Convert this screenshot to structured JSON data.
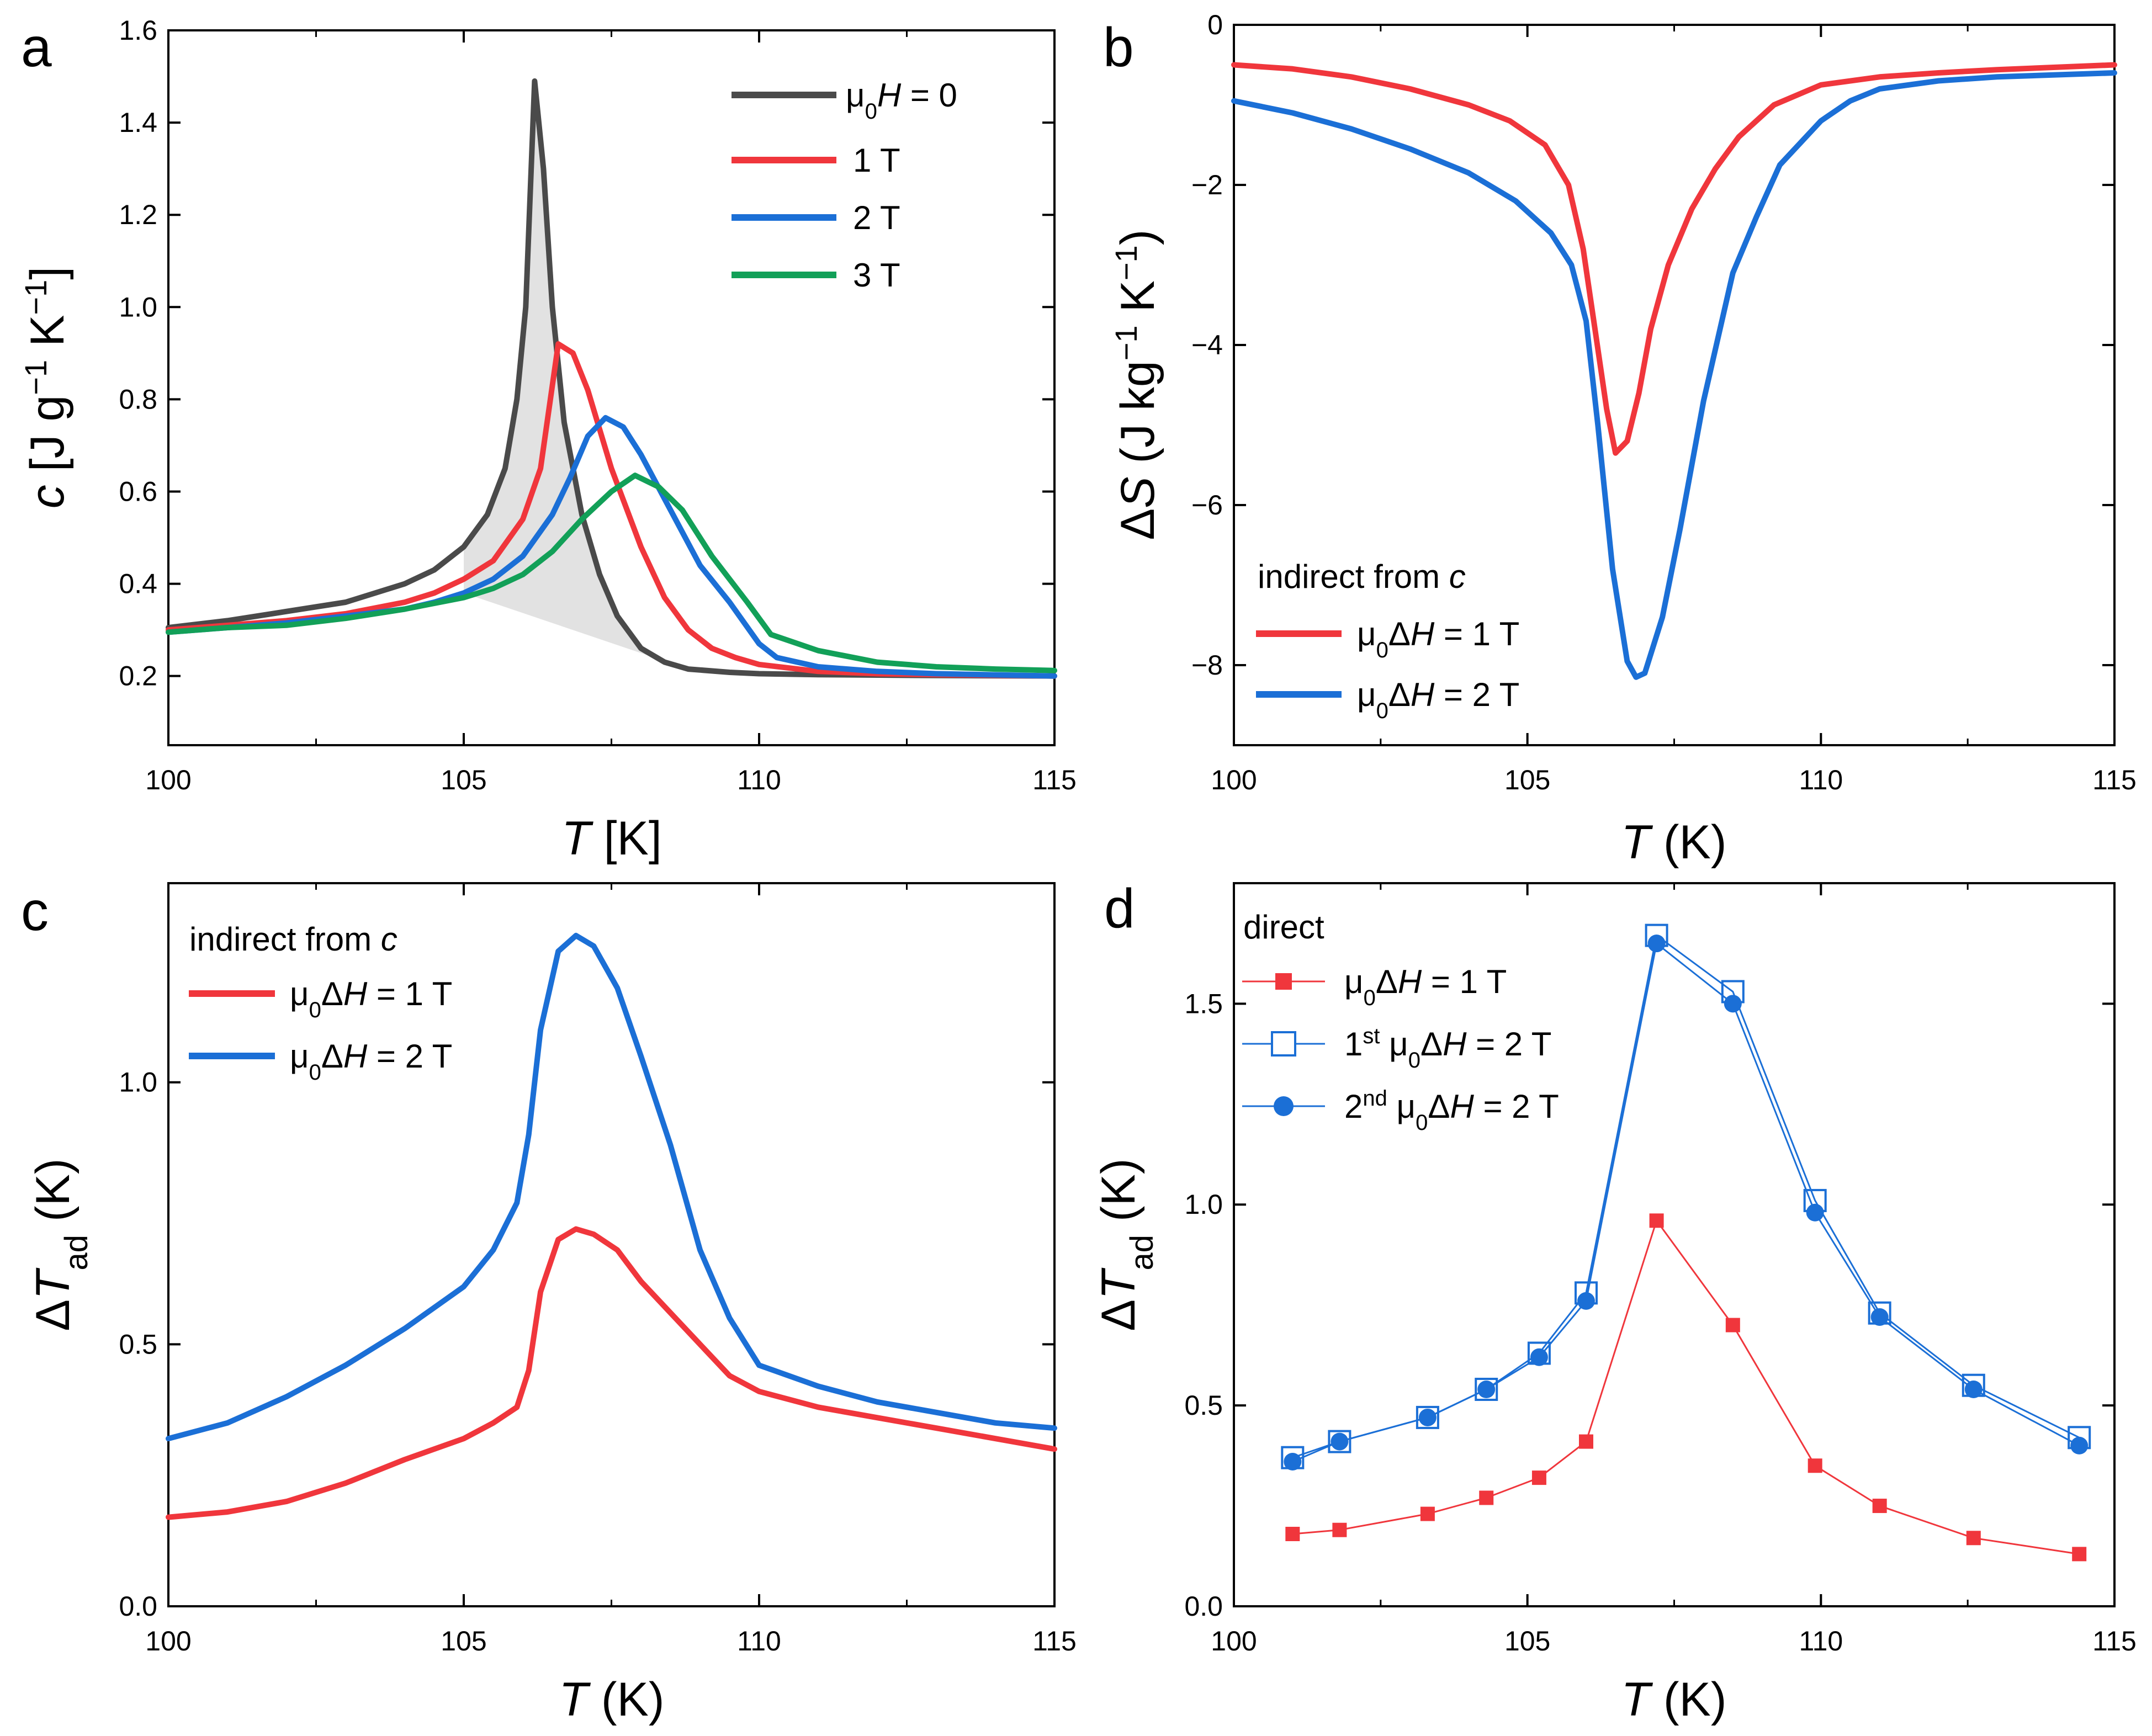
{
  "chart_data": [
    {
      "panel": "a",
      "type": "line",
      "xlabel": "T [K]",
      "ylabel": "c [J g⁻¹ K⁻¹]",
      "xlim": [
        100,
        115
      ],
      "ylim": [
        0.05,
        1.6
      ],
      "xticks": [
        "100",
        "105",
        "110",
        "115"
      ],
      "yticks": [
        "0.2",
        "0.4",
        "0.6",
        "0.8",
        "1.0",
        "1.2",
        "1.4",
        "1.6"
      ],
      "shaded_region": "between zero-field curve and baseline",
      "legend_position": "top-right",
      "series": [
        {
          "name": "μ0H = 0",
          "color": "#4a4a4a",
          "x": [
            100,
            101,
            102,
            103,
            104,
            104.5,
            105,
            105.4,
            105.7,
            105.9,
            106.05,
            106.2,
            106.35,
            106.5,
            106.7,
            107,
            107.3,
            107.6,
            108,
            108.4,
            108.8,
            109.5,
            110,
            111,
            112,
            113,
            115
          ],
          "y": [
            0.305,
            0.32,
            0.34,
            0.36,
            0.4,
            0.43,
            0.48,
            0.55,
            0.65,
            0.8,
            1.0,
            1.49,
            1.3,
            1.0,
            0.75,
            0.55,
            0.42,
            0.33,
            0.26,
            0.23,
            0.215,
            0.208,
            0.205,
            0.203,
            0.202,
            0.201,
            0.2
          ]
        },
        {
          "name": "1 T",
          "color": "#f0363c",
          "x": [
            100,
            101,
            102,
            103,
            104,
            104.5,
            105,
            105.5,
            106,
            106.3,
            106.6,
            106.85,
            107.1,
            107.5,
            108,
            108.4,
            108.8,
            109.2,
            109.6,
            110,
            111,
            112,
            113,
            115
          ],
          "y": [
            0.3,
            0.31,
            0.32,
            0.335,
            0.36,
            0.38,
            0.41,
            0.45,
            0.54,
            0.65,
            0.92,
            0.9,
            0.82,
            0.65,
            0.48,
            0.37,
            0.3,
            0.26,
            0.24,
            0.225,
            0.21,
            0.205,
            0.203,
            0.2
          ]
        },
        {
          "name": "2 T",
          "color": "#1b6fd6",
          "x": [
            100,
            101,
            102,
            103,
            104,
            104.5,
            105,
            105.5,
            106,
            106.5,
            106.8,
            107.1,
            107.4,
            107.7,
            108,
            108.5,
            109,
            109.5,
            110,
            110.3,
            111,
            112,
            113,
            115
          ],
          "y": [
            0.295,
            0.305,
            0.315,
            0.33,
            0.345,
            0.36,
            0.38,
            0.41,
            0.46,
            0.55,
            0.63,
            0.72,
            0.76,
            0.74,
            0.68,
            0.56,
            0.44,
            0.36,
            0.27,
            0.24,
            0.22,
            0.21,
            0.205,
            0.2
          ]
        },
        {
          "name": "3 T",
          "color": "#12a058",
          "x": [
            100,
            101,
            102,
            103,
            104,
            105,
            105.5,
            106,
            106.5,
            107,
            107.5,
            107.9,
            108.3,
            108.7,
            109.2,
            109.8,
            110.2,
            111,
            112,
            113,
            114,
            115
          ],
          "y": [
            0.295,
            0.305,
            0.31,
            0.325,
            0.345,
            0.37,
            0.39,
            0.42,
            0.47,
            0.54,
            0.6,
            0.635,
            0.61,
            0.56,
            0.46,
            0.36,
            0.29,
            0.255,
            0.23,
            0.22,
            0.215,
            0.212
          ]
        }
      ]
    },
    {
      "panel": "b",
      "type": "line",
      "xlabel": "T (K)",
      "ylabel": "ΔS (J kg⁻¹ K⁻¹)",
      "xlim": [
        100,
        115
      ],
      "ylim": [
        -9,
        0
      ],
      "xticks": [
        "100",
        "105",
        "110",
        "115"
      ],
      "yticks": [
        "0",
        "-2",
        "-4",
        "-6",
        "-8"
      ],
      "legend_title": "indirect from c",
      "legend_position": "bottom-left",
      "series": [
        {
          "name": "μ0ΔH = 1 T",
          "color": "#f0363c",
          "x": [
            100,
            101,
            102,
            103,
            104,
            104.7,
            105.3,
            105.7,
            105.95,
            106.15,
            106.35,
            106.5,
            106.7,
            106.9,
            107.1,
            107.4,
            107.8,
            108.2,
            108.6,
            109.2,
            110,
            111,
            112,
            113,
            115
          ],
          "y": [
            -0.5,
            -0.55,
            -0.65,
            -0.8,
            -1.0,
            -1.2,
            -1.5,
            -2.0,
            -2.8,
            -3.8,
            -4.8,
            -5.35,
            -5.2,
            -4.6,
            -3.8,
            -3.0,
            -2.3,
            -1.8,
            -1.4,
            -1.0,
            -0.75,
            -0.65,
            -0.6,
            -0.56,
            -0.5
          ]
        },
        {
          "name": "μ0ΔH = 2 T",
          "color": "#1b6fd6",
          "x": [
            100,
            101,
            102,
            103,
            104,
            104.8,
            105.4,
            105.75,
            106.0,
            106.2,
            106.45,
            106.7,
            106.85,
            107.0,
            107.3,
            107.6,
            108.0,
            108.5,
            108.9,
            109.3,
            110,
            110.5,
            111,
            112,
            113,
            115
          ],
          "y": [
            -0.95,
            -1.1,
            -1.3,
            -1.55,
            -1.85,
            -2.2,
            -2.6,
            -3.0,
            -3.7,
            -5.0,
            -6.8,
            -7.95,
            -8.15,
            -8.1,
            -7.4,
            -6.3,
            -4.7,
            -3.1,
            -2.4,
            -1.75,
            -1.2,
            -0.95,
            -0.8,
            -0.7,
            -0.65,
            -0.6
          ]
        }
      ]
    },
    {
      "panel": "c",
      "type": "line",
      "xlabel": "T (K)",
      "ylabel": "ΔTad (K)",
      "xlim": [
        100,
        115
      ],
      "ylim": [
        0,
        1.38
      ],
      "xticks": [
        "100",
        "105",
        "110",
        "115"
      ],
      "yticks": [
        "0.0",
        "0.5",
        "1.0"
      ],
      "legend_title": "indirect from c",
      "legend_position": "top-left",
      "series": [
        {
          "name": "μ0ΔH = 1 T",
          "color": "#f0363c",
          "x": [
            100,
            101,
            102,
            103,
            104,
            104.5,
            105,
            105.5,
            105.9,
            106.1,
            106.3,
            106.6,
            106.9,
            107.2,
            107.6,
            108,
            108.5,
            109,
            109.5,
            110,
            111,
            112,
            113,
            114,
            115
          ],
          "y": [
            0.17,
            0.18,
            0.2,
            0.235,
            0.28,
            0.3,
            0.32,
            0.35,
            0.38,
            0.45,
            0.6,
            0.7,
            0.72,
            0.71,
            0.68,
            0.62,
            0.56,
            0.5,
            0.44,
            0.41,
            0.38,
            0.36,
            0.34,
            0.32,
            0.3
          ]
        },
        {
          "name": "μ0ΔH = 2 T",
          "color": "#1b6fd6",
          "x": [
            100,
            101,
            102,
            103,
            104,
            104.5,
            105,
            105.5,
            105.9,
            106.1,
            106.3,
            106.6,
            106.9,
            107.2,
            107.6,
            108,
            108.5,
            109,
            109.5,
            110,
            111,
            112,
            113,
            114,
            115
          ],
          "y": [
            0.32,
            0.35,
            0.4,
            0.46,
            0.53,
            0.57,
            0.61,
            0.68,
            0.77,
            0.9,
            1.1,
            1.25,
            1.28,
            1.26,
            1.18,
            1.05,
            0.88,
            0.68,
            0.55,
            0.46,
            0.42,
            0.39,
            0.37,
            0.35,
            0.34
          ]
        }
      ]
    },
    {
      "panel": "d",
      "type": "line",
      "markers": true,
      "xlabel": "T (K)",
      "ylabel": "ΔTad (K)",
      "xlim": [
        100,
        115
      ],
      "ylim": [
        0,
        1.8
      ],
      "xticks": [
        "100",
        "105",
        "110",
        "115"
      ],
      "yticks": [
        "0.0",
        "0.5",
        "1.0",
        "1.5"
      ],
      "legend_title": "direct",
      "legend_position": "top-left",
      "series": [
        {
          "name": "μ0ΔH = 1 T",
          "color": "#f0363c",
          "marker": "filled-square",
          "x": [
            101,
            101.8,
            103.3,
            104.3,
            105.2,
            106,
            107.2,
            108.5,
            109.9,
            111,
            112.6,
            114.4
          ],
          "y": [
            0.18,
            0.19,
            0.23,
            0.27,
            0.32,
            0.41,
            0.96,
            0.7,
            0.35,
            0.25,
            0.17,
            0.13
          ]
        },
        {
          "name": "1st μ0ΔH = 2 T",
          "color": "#1b6fd6",
          "marker": "open-square",
          "x": [
            101,
            101.8,
            103.3,
            104.3,
            105.2,
            106,
            107.2,
            108.5,
            109.9,
            111,
            112.6,
            114.4
          ],
          "y": [
            0.37,
            0.41,
            0.47,
            0.54,
            0.63,
            0.78,
            1.67,
            1.53,
            1.01,
            0.73,
            0.55,
            0.42
          ]
        },
        {
          "name": "2nd μ0ΔH = 2 T",
          "color": "#1b6fd6",
          "marker": "filled-circle",
          "x": [
            101,
            101.8,
            103.3,
            104.3,
            105.2,
            106,
            107.2,
            108.5,
            109.9,
            111,
            112.6,
            114.4
          ],
          "y": [
            0.36,
            0.41,
            0.47,
            0.54,
            0.62,
            0.76,
            1.65,
            1.5,
            0.98,
            0.72,
            0.54,
            0.4
          ]
        }
      ]
    }
  ]
}
